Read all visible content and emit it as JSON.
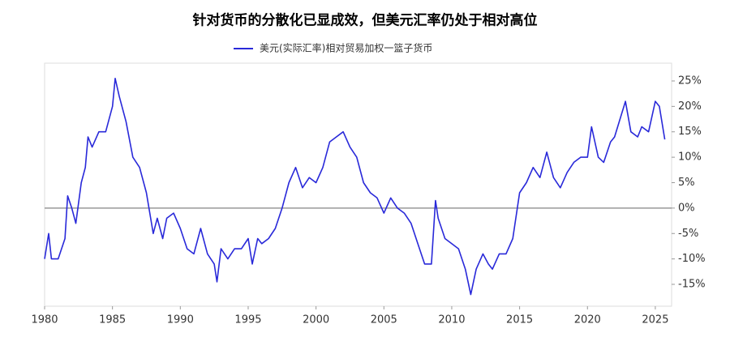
{
  "chart_data": {
    "type": "line",
    "title": "针对货币的分散化已显成效，但美元汇率仍处于相对高位",
    "x": [
      1980.0,
      1980.3,
      1980.5,
      1981.0,
      1981.5,
      1981.7,
      1982.0,
      1982.3,
      1982.7,
      1983.0,
      1983.2,
      1983.5,
      1984.0,
      1984.5,
      1985.0,
      1985.2,
      1985.5,
      1986.0,
      1986.5,
      1987.0,
      1987.5,
      1988.0,
      1988.3,
      1988.7,
      1989.0,
      1989.5,
      1990.0,
      1990.5,
      1991.0,
      1991.5,
      1992.0,
      1992.5,
      1992.7,
      1993.0,
      1993.5,
      1994.0,
      1994.5,
      1995.0,
      1995.3,
      1995.7,
      1996.0,
      1996.5,
      1997.0,
      1997.5,
      1998.0,
      1998.5,
      1999.0,
      1999.5,
      2000.0,
      2000.5,
      2001.0,
      2001.5,
      2002.0,
      2002.5,
      2003.0,
      2003.5,
      2004.0,
      2004.5,
      2005.0,
      2005.5,
      2006.0,
      2006.5,
      2007.0,
      2007.5,
      2008.0,
      2008.5,
      2008.8,
      2009.0,
      2009.5,
      2010.0,
      2010.5,
      2011.0,
      2011.4,
      2011.8,
      2012.3,
      2012.7,
      2013.0,
      2013.5,
      2014.0,
      2014.5,
      2015.0,
      2015.5,
      2016.0,
      2016.5,
      2017.0,
      2017.5,
      2018.0,
      2018.5,
      2019.0,
      2019.5,
      2020.0,
      2020.3,
      2020.8,
      2021.2,
      2021.7,
      2022.0,
      2022.8,
      2023.2,
      2023.7,
      2024.0,
      2024.5,
      2025.0,
      2025.3,
      2025.7
    ],
    "series": [
      {
        "name": "美元(实际汇率)相对贸易加权一篮子货币",
        "color": "#2929d9",
        "values": [
          -10,
          -5,
          -10,
          -10,
          -6,
          2.4,
          0,
          -3,
          5,
          8,
          14,
          12,
          15,
          15,
          20,
          25.5,
          22,
          17,
          10,
          8,
          3,
          -5,
          -2,
          -6,
          -2,
          -1,
          -4,
          -8,
          -9,
          -4,
          -9,
          -11,
          -14.5,
          -8,
          -10,
          -8,
          -8,
          -6,
          -11,
          -6,
          -7,
          -6,
          -4,
          0,
          5,
          8,
          4,
          6,
          5,
          8,
          13,
          14,
          15,
          12,
          10,
          5,
          3,
          2,
          -1,
          2,
          0,
          -1,
          -3,
          -7,
          -11,
          -11,
          1.5,
          -2,
          -6,
          -7,
          -8,
          -12,
          -17,
          -12,
          -9,
          -11,
          -12,
          -9,
          -9,
          -6,
          3,
          5,
          8,
          6,
          11,
          6,
          4,
          7,
          9,
          10,
          10,
          16,
          10,
          9,
          13,
          14,
          21,
          15,
          14,
          16,
          15,
          21,
          20,
          13.5
        ]
      }
    ],
    "xlim": [
      1980,
      2026.2
    ],
    "xticks": [
      1980,
      1985,
      1990,
      1995,
      2000,
      2005,
      2010,
      2015,
      2020,
      2025
    ],
    "ylim": [
      -19.3,
      28.5
    ],
    "yticks": [
      {
        "value": -15,
        "label": "-15%"
      },
      {
        "value": -10,
        "label": "-10%"
      },
      {
        "value": -5,
        "label": "-5%"
      },
      {
        "value": 0,
        "label": "0%"
      },
      {
        "value": 5,
        "label": "5%"
      },
      {
        "value": 10,
        "label": "10%"
      },
      {
        "value": 15,
        "label": "15%"
      },
      {
        "value": 20,
        "label": "20%"
      },
      {
        "value": 25,
        "label": "25%"
      }
    ],
    "hline": 0,
    "hline_color": "#999999",
    "legend": "top"
  }
}
